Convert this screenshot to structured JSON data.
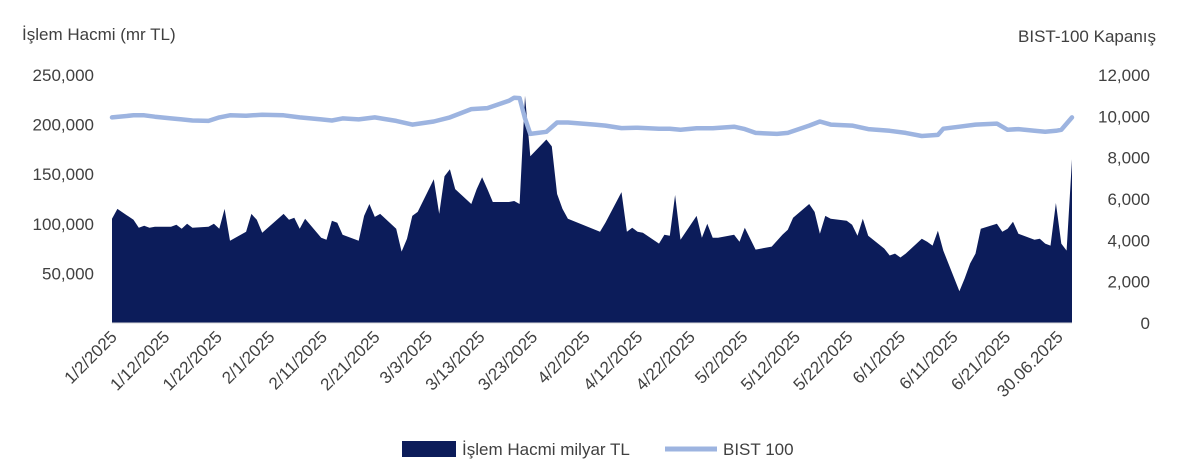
{
  "chart_data": {
    "type": "area",
    "title": "",
    "y_left_label": "İşlem Hacmi (mr TL)",
    "y_right_label": "BIST-100 Kapanış",
    "y_left_ticks": [
      "250,000",
      "200,000",
      "150,000",
      "100,000",
      "50,000"
    ],
    "y_right_ticks": [
      "12,000",
      "10,000",
      "8,000",
      "6,000",
      "4,000",
      "2,000",
      "0"
    ],
    "ylim_left": [
      0,
      250000
    ],
    "ylim_right": [
      0,
      12000
    ],
    "x_tick_labels": [
      "1/2/2025",
      "1/12/2025",
      "1/22/2025",
      "2/1/2025",
      "2/11/2025",
      "2/21/2025",
      "3/3/2025",
      "3/13/2025",
      "3/23/2025",
      "4/2/2025",
      "4/12/2025",
      "4/22/2025",
      "5/2/2025",
      "5/12/2025",
      "5/22/2025",
      "6/1/2025",
      "6/11/2025",
      "6/21/2025",
      "30.06.2025"
    ],
    "grid": false,
    "legend_position": "bottom",
    "series": [
      {
        "name": "İşlem Hacmi milyar TL",
        "type": "area",
        "axis": "left",
        "color": "#0c1c5a",
        "points": [
          [
            "2025-01-02",
            105000
          ],
          [
            "2025-01-03",
            115000
          ],
          [
            "2025-01-06",
            104000
          ],
          [
            "2025-01-07",
            96000
          ],
          [
            "2025-01-08",
            98000
          ],
          [
            "2025-01-09",
            96000
          ],
          [
            "2025-01-10",
            97000
          ],
          [
            "2025-01-13",
            97000
          ],
          [
            "2025-01-14",
            99000
          ],
          [
            "2025-01-15",
            95000
          ],
          [
            "2025-01-16",
            100000
          ],
          [
            "2025-01-17",
            96000
          ],
          [
            "2025-01-20",
            97000
          ],
          [
            "2025-01-21",
            100000
          ],
          [
            "2025-01-22",
            95000
          ],
          [
            "2025-01-23",
            115000
          ],
          [
            "2025-01-24",
            83000
          ],
          [
            "2025-01-27",
            92000
          ],
          [
            "2025-01-28",
            110000
          ],
          [
            "2025-01-29",
            104000
          ],
          [
            "2025-01-30",
            91000
          ],
          [
            "2025-02-03",
            110000
          ],
          [
            "2025-02-04",
            104000
          ],
          [
            "2025-02-05",
            106000
          ],
          [
            "2025-02-06",
            95000
          ],
          [
            "2025-02-07",
            105000
          ],
          [
            "2025-02-10",
            86000
          ],
          [
            "2025-02-11",
            84000
          ],
          [
            "2025-02-12",
            103000
          ],
          [
            "2025-02-13",
            101000
          ],
          [
            "2025-02-14",
            89000
          ],
          [
            "2025-02-17",
            83000
          ],
          [
            "2025-02-18",
            108000
          ],
          [
            "2025-02-19",
            120000
          ],
          [
            "2025-02-20",
            107000
          ],
          [
            "2025-02-21",
            110000
          ],
          [
            "2025-02-24",
            95000
          ],
          [
            "2025-02-25",
            72000
          ],
          [
            "2025-02-26",
            85000
          ],
          [
            "2025-02-27",
            108000
          ],
          [
            "2025-02-28",
            112000
          ],
          [
            "2025-03-03",
            145000
          ],
          [
            "2025-03-04",
            110000
          ],
          [
            "2025-03-05",
            148000
          ],
          [
            "2025-03-06",
            155000
          ],
          [
            "2025-03-07",
            135000
          ],
          [
            "2025-03-10",
            120000
          ],
          [
            "2025-03-11",
            135000
          ],
          [
            "2025-03-12",
            147000
          ],
          [
            "2025-03-13",
            135000
          ],
          [
            "2025-03-14",
            122000
          ],
          [
            "2025-03-17",
            122000
          ],
          [
            "2025-03-18",
            123000
          ],
          [
            "2025-03-19",
            120000
          ],
          [
            "2025-03-20",
            229000
          ],
          [
            "2025-03-21",
            168000
          ],
          [
            "2025-03-24",
            185000
          ],
          [
            "2025-03-25",
            178000
          ],
          [
            "2025-03-26",
            130000
          ],
          [
            "2025-03-27",
            115000
          ],
          [
            "2025-03-28",
            105000
          ],
          [
            "2025-04-03",
            92000
          ],
          [
            "2025-04-04",
            101000
          ],
          [
            "2025-04-07",
            132000
          ],
          [
            "2025-04-08",
            92000
          ],
          [
            "2025-04-09",
            96000
          ],
          [
            "2025-04-10",
            92000
          ],
          [
            "2025-04-11",
            91000
          ],
          [
            "2025-04-14",
            80000
          ],
          [
            "2025-04-15",
            89000
          ],
          [
            "2025-04-16",
            88000
          ],
          [
            "2025-04-17",
            129000
          ],
          [
            "2025-04-18",
            84000
          ],
          [
            "2025-04-21",
            108000
          ],
          [
            "2025-04-22",
            86000
          ],
          [
            "2025-04-23",
            100000
          ],
          [
            "2025-04-24",
            86000
          ],
          [
            "2025-04-25",
            86000
          ],
          [
            "2025-04-28",
            89000
          ],
          [
            "2025-04-29",
            82000
          ],
          [
            "2025-04-30",
            96000
          ],
          [
            "2025-05-02",
            74000
          ],
          [
            "2025-05-05",
            77000
          ],
          [
            "2025-05-06",
            83000
          ],
          [
            "2025-05-07",
            89000
          ],
          [
            "2025-05-08",
            94000
          ],
          [
            "2025-05-09",
            106000
          ],
          [
            "2025-05-12",
            120000
          ],
          [
            "2025-05-13",
            112000
          ],
          [
            "2025-05-14",
            90000
          ],
          [
            "2025-05-15",
            108000
          ],
          [
            "2025-05-16",
            105000
          ],
          [
            "2025-05-19",
            103000
          ],
          [
            "2025-05-20",
            99000
          ],
          [
            "2025-05-21",
            88000
          ],
          [
            "2025-05-22",
            105000
          ],
          [
            "2025-05-23",
            88000
          ],
          [
            "2025-05-26",
            75000
          ],
          [
            "2025-05-27",
            68000
          ],
          [
            "2025-05-28",
            70000
          ],
          [
            "2025-05-29",
            66000
          ],
          [
            "2025-05-30",
            70000
          ],
          [
            "2025-06-02",
            85000
          ],
          [
            "2025-06-03",
            82000
          ],
          [
            "2025-06-04",
            78000
          ],
          [
            "2025-06-05",
            93000
          ],
          [
            "2025-06-06",
            73000
          ],
          [
            "2025-06-09",
            32000
          ],
          [
            "2025-06-10",
            45000
          ],
          [
            "2025-06-11",
            60000
          ],
          [
            "2025-06-12",
            70000
          ],
          [
            "2025-06-13",
            95000
          ],
          [
            "2025-06-16",
            100000
          ],
          [
            "2025-06-17",
            92000
          ],
          [
            "2025-06-18",
            95000
          ],
          [
            "2025-06-19",
            102000
          ],
          [
            "2025-06-20",
            90000
          ],
          [
            "2025-06-23",
            84000
          ],
          [
            "2025-06-24",
            85000
          ],
          [
            "2025-06-25",
            80000
          ],
          [
            "2025-06-26",
            78000
          ],
          [
            "2025-06-27",
            121000
          ],
          [
            "2025-06-28",
            80000
          ],
          [
            "2025-06-29",
            73000
          ],
          [
            "2025-06-30",
            165000
          ]
        ]
      },
      {
        "name": "BIST 100",
        "type": "line",
        "axis": "right",
        "color": "#9db4e0",
        "points": [
          [
            "2025-01-02",
            9950
          ],
          [
            "2025-01-06",
            10050
          ],
          [
            "2025-01-08",
            10050
          ],
          [
            "2025-01-10",
            9980
          ],
          [
            "2025-01-13",
            9900
          ],
          [
            "2025-01-15",
            9850
          ],
          [
            "2025-01-17",
            9800
          ],
          [
            "2025-01-20",
            9780
          ],
          [
            "2025-01-22",
            9950
          ],
          [
            "2025-01-24",
            10050
          ],
          [
            "2025-01-27",
            10030
          ],
          [
            "2025-01-30",
            10080
          ],
          [
            "2025-02-03",
            10050
          ],
          [
            "2025-02-06",
            9950
          ],
          [
            "2025-02-10",
            9850
          ],
          [
            "2025-02-12",
            9800
          ],
          [
            "2025-02-14",
            9900
          ],
          [
            "2025-02-17",
            9850
          ],
          [
            "2025-02-20",
            9950
          ],
          [
            "2025-02-24",
            9780
          ],
          [
            "2025-02-27",
            9600
          ],
          [
            "2025-03-03",
            9750
          ],
          [
            "2025-03-06",
            9950
          ],
          [
            "2025-03-10",
            10350
          ],
          [
            "2025-03-13",
            10400
          ],
          [
            "2025-03-17",
            10750
          ],
          [
            "2025-03-18",
            10900
          ],
          [
            "2025-03-19",
            10880
          ],
          [
            "2025-03-20",
            9900
          ],
          [
            "2025-03-21",
            9150
          ],
          [
            "2025-03-24",
            9250
          ],
          [
            "2025-03-26",
            9700
          ],
          [
            "2025-03-28",
            9700
          ],
          [
            "2025-04-02",
            9600
          ],
          [
            "2025-04-04",
            9550
          ],
          [
            "2025-04-07",
            9430
          ],
          [
            "2025-04-10",
            9450
          ],
          [
            "2025-04-14",
            9400
          ],
          [
            "2025-04-16",
            9400
          ],
          [
            "2025-04-18",
            9350
          ],
          [
            "2025-04-21",
            9420
          ],
          [
            "2025-04-24",
            9420
          ],
          [
            "2025-04-28",
            9500
          ],
          [
            "2025-04-30",
            9380
          ],
          [
            "2025-05-02",
            9200
          ],
          [
            "2025-05-06",
            9150
          ],
          [
            "2025-05-08",
            9200
          ],
          [
            "2025-05-12",
            9550
          ],
          [
            "2025-05-14",
            9750
          ],
          [
            "2025-05-16",
            9600
          ],
          [
            "2025-05-20",
            9550
          ],
          [
            "2025-05-23",
            9380
          ],
          [
            "2025-05-27",
            9300
          ],
          [
            "2025-05-30",
            9200
          ],
          [
            "2025-06-02",
            9050
          ],
          [
            "2025-06-05",
            9100
          ],
          [
            "2025-06-06",
            9400
          ],
          [
            "2025-06-09",
            9500
          ],
          [
            "2025-06-12",
            9600
          ],
          [
            "2025-06-16",
            9650
          ],
          [
            "2025-06-18",
            9350
          ],
          [
            "2025-06-20",
            9380
          ],
          [
            "2025-06-23",
            9300
          ],
          [
            "2025-06-25",
            9250
          ],
          [
            "2025-06-27",
            9300
          ],
          [
            "2025-06-28",
            9350
          ],
          [
            "2025-06-30",
            9950
          ]
        ]
      }
    ]
  }
}
